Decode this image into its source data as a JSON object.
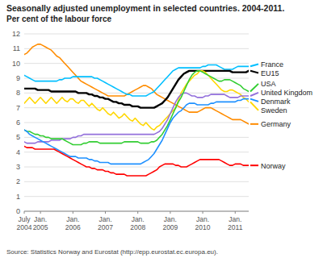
{
  "chart_data": {
    "type": "line",
    "title": "Seasonally adjusted unemployment in selected countries. 2004-2011.",
    "subtitle": "Per cent of the labour force",
    "annotations": [
      "Source: Statistics Norway and Eurostat (http://epp.eurostat.ec.europa.eu)."
    ],
    "categories": [
      "July\n2004",
      null,
      null,
      null,
      null,
      null,
      "Jan.\n2005",
      null,
      null,
      null,
      null,
      null,
      null,
      null,
      null,
      null,
      null,
      null,
      "Jan.\n2006",
      null,
      null,
      null,
      null,
      null,
      null,
      null,
      null,
      null,
      null,
      null,
      "Jan.\n2007",
      null,
      null,
      null,
      null,
      null,
      null,
      null,
      null,
      null,
      null,
      null,
      "Jan.\n2008",
      null,
      null,
      null,
      null,
      null,
      null,
      null,
      null,
      null,
      null,
      null,
      "Jan.\n2009",
      null,
      null,
      null,
      null,
      null,
      null,
      null,
      null,
      null,
      null,
      null,
      "Jan.\n2010",
      null,
      null,
      null,
      null,
      null,
      null,
      null,
      null,
      null,
      null,
      null,
      "Jan.\n2011",
      null,
      null,
      null,
      null,
      null
    ],
    "ylim": [
      0,
      12
    ],
    "yticks": [
      0,
      1,
      2,
      3,
      4,
      5,
      6,
      7,
      8,
      9,
      10,
      11,
      12
    ],
    "grid": true,
    "series": [
      {
        "name": "Germany",
        "color": "#FF8C00",
        "values": [
          10.6,
          10.7,
          10.9,
          11.1,
          11.2,
          11.3,
          11.3,
          11.2,
          11.1,
          11.0,
          10.9,
          10.7,
          10.5,
          10.4,
          10.2,
          10.0,
          9.8,
          9.6,
          9.4,
          9.2,
          9.0,
          8.8,
          8.7,
          8.6,
          8.5,
          8.4,
          8.3,
          8.2,
          8.1,
          8.0,
          7.9,
          7.8,
          7.8,
          7.8,
          7.8,
          7.8,
          7.8,
          7.8,
          7.9,
          8.0,
          8.1,
          8.2,
          8.3,
          8.4,
          8.5,
          8.5,
          8.4,
          8.3,
          8.1,
          7.9,
          7.8,
          7.7,
          7.6,
          7.5,
          7.4,
          7.3,
          7.2,
          7.1,
          7.0,
          6.9,
          6.8,
          6.7,
          6.7,
          6.7,
          6.7,
          6.8,
          6.9,
          7.0,
          7.0,
          7.0,
          6.9,
          6.8,
          6.7,
          6.6,
          6.5,
          6.4,
          6.3,
          6.2,
          6.2,
          6.2,
          6.2,
          6.1,
          6.0,
          5.9
        ]
      },
      {
        "name": "France",
        "color": "#00BFFF",
        "values": [
          9.2,
          9.1,
          9.0,
          8.9,
          8.8,
          8.8,
          8.8,
          8.8,
          8.8,
          8.8,
          8.8,
          8.8,
          8.8,
          8.9,
          8.9,
          9.0,
          9.0,
          9.0,
          9.1,
          9.1,
          9.1,
          9.1,
          9.1,
          9.1,
          9.1,
          9.1,
          9.0,
          9.0,
          8.9,
          8.8,
          8.7,
          8.6,
          8.5,
          8.4,
          8.3,
          8.2,
          8.1,
          8.0,
          7.9,
          7.9,
          7.8,
          7.8,
          7.8,
          7.8,
          7.8,
          7.8,
          7.9,
          8.0,
          8.1,
          8.3,
          8.5,
          8.7,
          8.9,
          9.1,
          9.3,
          9.5,
          9.6,
          9.7,
          9.7,
          9.7,
          9.7,
          9.7,
          9.7,
          9.7,
          9.7,
          9.7,
          9.8,
          9.8,
          9.9,
          9.9,
          9.9,
          9.9,
          9.8,
          9.7,
          9.6,
          9.6,
          9.6,
          9.6,
          9.7,
          9.8,
          9.8,
          9.8,
          9.8,
          9.8
        ]
      },
      {
        "name": "EU15",
        "color": "#000000",
        "values": [
          8.3,
          8.3,
          8.3,
          8.3,
          8.3,
          8.2,
          8.2,
          8.2,
          8.2,
          8.2,
          8.1,
          8.1,
          8.1,
          8.1,
          8.1,
          8.1,
          8.1,
          8.1,
          8.1,
          8.1,
          8.0,
          8.0,
          8.0,
          8.0,
          7.9,
          7.9,
          7.8,
          7.8,
          7.7,
          7.7,
          7.6,
          7.6,
          7.5,
          7.4,
          7.4,
          7.3,
          7.3,
          7.2,
          7.2,
          7.2,
          7.1,
          7.1,
          7.1,
          7.0,
          7.0,
          7.0,
          7.0,
          7.0,
          7.0,
          7.1,
          7.2,
          7.3,
          7.5,
          7.7,
          8.0,
          8.3,
          8.6,
          8.9,
          9.1,
          9.3,
          9.4,
          9.5,
          9.5,
          9.5,
          9.5,
          9.5,
          9.5,
          9.5,
          9.5,
          9.5,
          9.5,
          9.5,
          9.5,
          9.5,
          9.5,
          9.5,
          9.5,
          9.4,
          9.4,
          9.4,
          9.4,
          9.4,
          9.4,
          9.5
        ]
      },
      {
        "name": "Sweden",
        "color": "#FFD700",
        "values": [
          7.3,
          7.5,
          7.7,
          7.5,
          7.3,
          7.5,
          7.7,
          7.5,
          7.3,
          7.5,
          7.7,
          7.5,
          7.3,
          7.5,
          7.7,
          7.5,
          7.4,
          7.6,
          7.6,
          7.4,
          7.3,
          7.5,
          7.5,
          7.3,
          7.1,
          7.3,
          7.1,
          6.9,
          6.8,
          7.0,
          6.8,
          6.6,
          6.5,
          6.7,
          6.5,
          6.3,
          6.4,
          6.6,
          6.4,
          6.2,
          6.1,
          6.3,
          6.1,
          5.9,
          5.8,
          6.0,
          5.8,
          5.6,
          5.5,
          5.7,
          5.8,
          6.0,
          6.2,
          6.4,
          6.6,
          6.8,
          7.0,
          7.5,
          8.0,
          8.3,
          8.6,
          8.8,
          9.0,
          9.2,
          9.3,
          9.5,
          9.5,
          9.4,
          9.2,
          9.0,
          8.8,
          8.6,
          8.4,
          8.2,
          8.1,
          8.1,
          8.2,
          8.2,
          8.1,
          8.0,
          7.9,
          7.7,
          7.6,
          7.4
        ]
      },
      {
        "name": "United Kingdom",
        "color": "#9370DB",
        "values": [
          4.7,
          4.6,
          4.6,
          4.6,
          4.6,
          4.7,
          4.7,
          4.7,
          4.7,
          4.7,
          4.8,
          4.8,
          4.8,
          4.8,
          4.9,
          4.9,
          4.9,
          4.9,
          5.0,
          5.0,
          5.1,
          5.1,
          5.2,
          5.2,
          5.2,
          5.2,
          5.2,
          5.2,
          5.2,
          5.2,
          5.2,
          5.2,
          5.2,
          5.2,
          5.2,
          5.2,
          5.2,
          5.2,
          5.2,
          5.2,
          5.2,
          5.2,
          5.2,
          5.2,
          5.2,
          5.2,
          5.2,
          5.2,
          5.2,
          5.3,
          5.4,
          5.6,
          5.9,
          6.2,
          6.6,
          7.0,
          7.4,
          7.7,
          7.9,
          8.0,
          8.0,
          7.9,
          7.8,
          7.8,
          7.7,
          7.7,
          7.7,
          7.8,
          7.8,
          7.9,
          7.9,
          7.9,
          7.9,
          7.9,
          7.9,
          7.8,
          7.7,
          7.7,
          7.7,
          7.7,
          7.8,
          7.8,
          7.8,
          7.8
        ]
      },
      {
        "name": "USA",
        "color": "#32CD32",
        "values": [
          5.5,
          5.4,
          5.4,
          5.3,
          5.2,
          5.2,
          5.1,
          5.1,
          5.0,
          5.0,
          4.9,
          4.9,
          4.9,
          4.9,
          4.9,
          4.8,
          4.7,
          4.6,
          4.5,
          4.5,
          4.5,
          4.5,
          4.6,
          4.6,
          4.7,
          4.7,
          4.7,
          4.7,
          4.6,
          4.6,
          4.6,
          4.6,
          4.6,
          4.6,
          4.6,
          4.6,
          4.6,
          4.7,
          4.7,
          4.7,
          4.7,
          4.7,
          4.7,
          4.6,
          4.6,
          4.6,
          4.6,
          4.7,
          4.7,
          4.8,
          5.0,
          5.2,
          5.5,
          5.8,
          6.2,
          6.6,
          7.0,
          7.4,
          7.7,
          8.1,
          8.5,
          8.9,
          9.2,
          9.4,
          9.5,
          9.5,
          9.4,
          9.3,
          9.2,
          9.1,
          9.0,
          8.9,
          8.8,
          8.8,
          8.9,
          8.9,
          8.9,
          8.8,
          8.7,
          8.6,
          8.5,
          8.3,
          8.2,
          8.1
        ]
      },
      {
        "name": "Denmark",
        "color": "#1E90FF",
        "values": [
          5.5,
          5.4,
          5.2,
          5.1,
          5.0,
          4.9,
          4.8,
          4.7,
          4.6,
          4.5,
          4.4,
          4.3,
          4.2,
          4.1,
          4.0,
          3.9,
          3.8,
          3.7,
          3.7,
          3.7,
          3.6,
          3.6,
          3.6,
          3.6,
          3.5,
          3.5,
          3.4,
          3.4,
          3.3,
          3.3,
          3.3,
          3.3,
          3.2,
          3.2,
          3.2,
          3.2,
          3.2,
          3.2,
          3.2,
          3.2,
          3.2,
          3.2,
          3.2,
          3.2,
          3.3,
          3.4,
          3.5,
          3.7,
          3.9,
          4.2,
          4.5,
          4.8,
          5.2,
          5.6,
          6.0,
          6.3,
          6.5,
          6.7,
          6.8,
          7.0,
          7.2,
          7.3,
          7.3,
          7.3,
          7.2,
          7.2,
          7.2,
          7.2,
          7.2,
          7.3,
          7.3,
          7.4,
          7.4,
          7.4,
          7.4,
          7.4,
          7.4,
          7.4,
          7.4,
          7.5,
          7.5,
          7.6,
          7.6,
          7.6
        ]
      },
      {
        "name": "Norway",
        "color": "#FF0000",
        "values": [
          4.4,
          4.3,
          4.3,
          4.3,
          4.2,
          4.2,
          4.2,
          4.2,
          4.2,
          4.2,
          4.2,
          4.2,
          4.1,
          4.0,
          3.9,
          3.8,
          3.7,
          3.6,
          3.5,
          3.4,
          3.3,
          3.2,
          3.1,
          3.0,
          3.0,
          2.9,
          2.9,
          2.8,
          2.8,
          2.8,
          2.7,
          2.7,
          2.6,
          2.6,
          2.5,
          2.5,
          2.5,
          2.5,
          2.4,
          2.4,
          2.4,
          2.4,
          2.4,
          2.4,
          2.4,
          2.4,
          2.5,
          2.6,
          2.7,
          2.8,
          3.0,
          3.1,
          3.2,
          3.2,
          3.2,
          3.2,
          3.1,
          3.1,
          3.0,
          3.0,
          3.0,
          3.1,
          3.2,
          3.3,
          3.4,
          3.5,
          3.5,
          3.5,
          3.5,
          3.5,
          3.5,
          3.5,
          3.5,
          3.4,
          3.3,
          3.2,
          3.1,
          3.1,
          3.2,
          3.2,
          3.2,
          3.1,
          3.1,
          3.1
        ]
      }
    ]
  }
}
